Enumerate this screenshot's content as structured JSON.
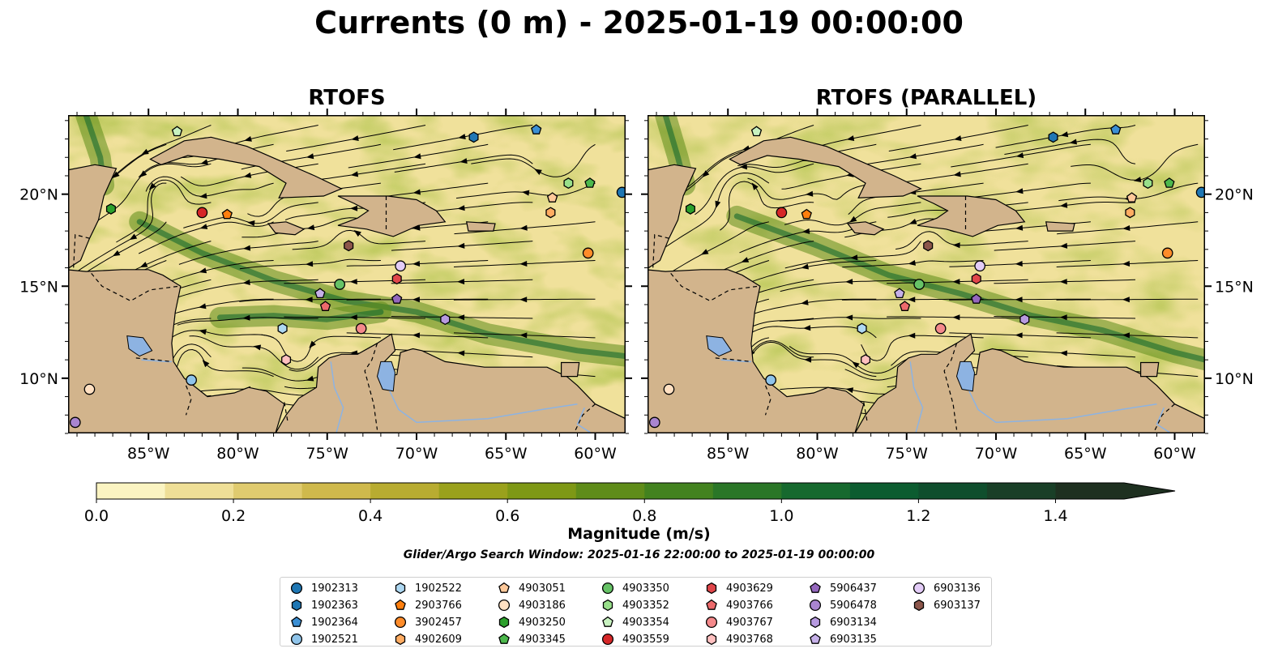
{
  "title": "Currents (0 m) - 2025-01-19 00:00:00",
  "panels": [
    {
      "title": "RTOFS"
    },
    {
      "title": "RTOFS (PARALLEL)"
    }
  ],
  "axes": {
    "lon_ticks": [
      "85°W",
      "80°W",
      "75°W",
      "70°W",
      "65°W",
      "60°W"
    ],
    "lat_ticks": [
      "20°N",
      "15°N",
      "10°N"
    ],
    "lon_range": [
      -89.5,
      -58.3
    ],
    "lat_range": [
      7.0,
      24.3
    ]
  },
  "colorbar": {
    "label": "Magnitude (m/s)",
    "ticks": [
      "0.0",
      "0.2",
      "0.4",
      "0.6",
      "0.8",
      "1.0",
      "1.2",
      "1.4"
    ],
    "min": 0.0,
    "max": 1.5,
    "extend": "max",
    "colors": [
      "#fbf4c2",
      "#efdf97",
      "#e0cb6f",
      "#cfb94c",
      "#b8ac31",
      "#9aa11c",
      "#7e9815",
      "#5f8c19",
      "#43821f",
      "#2a7627",
      "#16692e",
      "#0c5c30",
      "#0f4e2d",
      "#193f27",
      "#1e3020"
    ]
  },
  "search_window": "Glider/Argo Search Window: 2025-01-16 22:00:00 to 2025-01-19 00:00:00",
  "map_colors": {
    "land": "#d2b48c",
    "water_body": "#8db3e2",
    "ocean_base": "#e6d27a"
  },
  "legend": [
    {
      "label": "1902313",
      "marker": "circle",
      "color": "#1f77b4"
    },
    {
      "label": "1902363",
      "marker": "hexagon",
      "color": "#1f77b4"
    },
    {
      "label": "1902364",
      "marker": "pentagon",
      "color": "#3b8fd4"
    },
    {
      "label": "1902521",
      "marker": "circle",
      "color": "#8fc4ea"
    },
    {
      "label": "1902522",
      "marker": "hexagon",
      "color": "#aed8f2"
    },
    {
      "label": "2903766",
      "marker": "pentagon",
      "color": "#ff7f0e"
    },
    {
      "label": "3902457",
      "marker": "circle",
      "color": "#ff8c2a"
    },
    {
      "label": "4902609",
      "marker": "hexagon",
      "color": "#ffac62"
    },
    {
      "label": "4903051",
      "marker": "pentagon",
      "color": "#ffc99a"
    },
    {
      "label": "4903186",
      "marker": "circle",
      "color": "#ffe0c2"
    },
    {
      "label": "4903250",
      "marker": "hexagon",
      "color": "#2ca02c"
    },
    {
      "label": "4903345",
      "marker": "pentagon",
      "color": "#4cb84c"
    },
    {
      "label": "4903350",
      "marker": "circle",
      "color": "#66c266"
    },
    {
      "label": "4903352",
      "marker": "hexagon",
      "color": "#98df8a"
    },
    {
      "label": "4903354",
      "marker": "pentagon",
      "color": "#c8f2c0"
    },
    {
      "label": "4903559",
      "marker": "circle",
      "color": "#d62728"
    },
    {
      "label": "4903629",
      "marker": "hexagon",
      "color": "#e0464a"
    },
    {
      "label": "4903766",
      "marker": "pentagon",
      "color": "#ec6a6c"
    },
    {
      "label": "4903767",
      "marker": "circle",
      "color": "#f4898b"
    },
    {
      "label": "4903768",
      "marker": "hexagon",
      "color": "#ffc0c0"
    },
    {
      "label": "5906437",
      "marker": "pentagon",
      "color": "#9467bd"
    },
    {
      "label": "5906478",
      "marker": "circle",
      "color": "#a985d0"
    },
    {
      "label": "6903134",
      "marker": "hexagon",
      "color": "#b79ae0"
    },
    {
      "label": "6903135",
      "marker": "pentagon",
      "color": "#c5b0e8"
    },
    {
      "label": "6903136",
      "marker": "circle",
      "color": "#e3ccf7"
    },
    {
      "label": "6903137",
      "marker": "hexagon",
      "color": "#8c564b"
    }
  ],
  "floats": [
    {
      "id": "1902313",
      "lon": -58.5,
      "lat": 20.1
    },
    {
      "id": "1902363",
      "lon": -66.8,
      "lat": 23.1
    },
    {
      "id": "1902364",
      "lon": -63.3,
      "lat": 23.5
    },
    {
      "id": "1902521",
      "lon": -82.6,
      "lat": 9.9
    },
    {
      "id": "1902522",
      "lon": -77.5,
      "lat": 12.7
    },
    {
      "id": "2903766",
      "lon": -80.6,
      "lat": 18.9
    },
    {
      "id": "3902457",
      "lon": -60.4,
      "lat": 16.8
    },
    {
      "id": "4902609",
      "lon": -62.5,
      "lat": 19.0
    },
    {
      "id": "4903051",
      "lon": -62.4,
      "lat": 19.8
    },
    {
      "id": "4903186",
      "lon": -88.3,
      "lat": 9.4
    },
    {
      "id": "4903250",
      "lon": -87.1,
      "lat": 19.2
    },
    {
      "id": "4903345",
      "lon": -60.3,
      "lat": 20.6
    },
    {
      "id": "4903350",
      "lon": -74.3,
      "lat": 15.1
    },
    {
      "id": "4903352",
      "lon": -61.5,
      "lat": 20.6
    },
    {
      "id": "4903354",
      "lon": -83.4,
      "lat": 23.4
    },
    {
      "id": "4903559",
      "lon": -82.0,
      "lat": 19.0
    },
    {
      "id": "4903629",
      "lon": -71.1,
      "lat": 15.4
    },
    {
      "id": "4903766",
      "lon": -75.1,
      "lat": 13.9
    },
    {
      "id": "4903767",
      "lon": -73.1,
      "lat": 12.7
    },
    {
      "id": "4903768",
      "lon": -77.3,
      "lat": 11.0
    },
    {
      "id": "5906437",
      "lon": -71.1,
      "lat": 14.3
    },
    {
      "id": "5906478",
      "lon": -89.1,
      "lat": 7.6
    },
    {
      "id": "6903134",
      "lon": -68.4,
      "lat": 13.2
    },
    {
      "id": "6903135",
      "lon": -75.4,
      "lat": 14.6
    },
    {
      "id": "6903136",
      "lon": -70.9,
      "lat": 16.1
    },
    {
      "id": "6903137",
      "lon": -73.8,
      "lat": 17.2
    }
  ]
}
